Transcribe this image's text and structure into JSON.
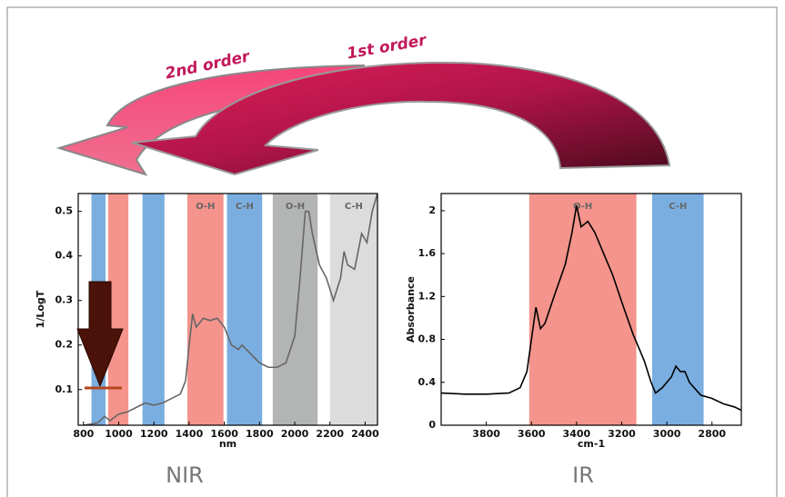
{
  "annotations": [
    "2nd order",
    "1st order"
  ],
  "chart_data": [
    {
      "type": "line",
      "title": "NIR",
      "xlabel": "nm",
      "ylabel": "1/LogT",
      "color": "#666666",
      "xlim": [
        770,
        2470
      ],
      "ylim": [
        0.02,
        0.54
      ],
      "xticks": [
        800,
        1000,
        1200,
        1400,
        1600,
        1800,
        2000,
        2200,
        2400
      ],
      "yticks": [
        0.1,
        0.2,
        0.3,
        0.4,
        0.5
      ],
      "bands": [
        {
          "from": 845,
          "to": 925,
          "color": "#7aaee0"
        },
        {
          "from": 940,
          "to": 1055,
          "color": "#f4948c"
        },
        {
          "from": 1135,
          "to": 1260,
          "color": "#7aaee0"
        },
        {
          "from": 1390,
          "to": 1595,
          "color": "#f4948c",
          "label": "O-H"
        },
        {
          "from": 1615,
          "to": 1815,
          "color": "#7aaee0",
          "label": "C-H"
        },
        {
          "from": 1875,
          "to": 2130,
          "color": "#b2b5b4",
          "label": "O-H"
        },
        {
          "from": 2200,
          "to": 2470,
          "color": "#dcdcdc",
          "label": "C-H"
        }
      ],
      "x": [
        800,
        880,
        920,
        950,
        1000,
        1050,
        1100,
        1150,
        1200,
        1250,
        1300,
        1350,
        1380,
        1400,
        1420,
        1440,
        1480,
        1520,
        1560,
        1600,
        1640,
        1680,
        1700,
        1750,
        1800,
        1850,
        1900,
        1950,
        2000,
        2030,
        2060,
        2080,
        2100,
        2140,
        2180,
        2220,
        2260,
        2280,
        2300,
        2340,
        2380,
        2410,
        2440,
        2470
      ],
      "values": [
        0.02,
        0.025,
        0.04,
        0.03,
        0.045,
        0.05,
        0.06,
        0.07,
        0.065,
        0.07,
        0.08,
        0.09,
        0.12,
        0.2,
        0.27,
        0.24,
        0.26,
        0.255,
        0.26,
        0.24,
        0.2,
        0.19,
        0.2,
        0.18,
        0.16,
        0.15,
        0.15,
        0.16,
        0.22,
        0.35,
        0.5,
        0.5,
        0.45,
        0.38,
        0.35,
        0.3,
        0.35,
        0.41,
        0.38,
        0.37,
        0.45,
        0.43,
        0.5,
        0.54
      ]
    },
    {
      "type": "line",
      "title": "IR",
      "xlabel": "cm-1",
      "ylabel": "Absorbance",
      "color": "#000000",
      "xlim": [
        4000,
        2670
      ],
      "ylim": [
        0,
        2.16
      ],
      "xticks": [
        3800,
        3600,
        3400,
        3200,
        3000,
        2800
      ],
      "yticks": [
        0,
        0.4,
        0.8,
        1.2,
        1.6,
        2
      ],
      "bands": [
        {
          "from": 3610,
          "to": 3135,
          "color": "#f4948c",
          "label": "O-H"
        },
        {
          "from": 3065,
          "to": 2837,
          "color": "#7aaee0",
          "label": "C-H"
        }
      ],
      "x": [
        4000,
        3900,
        3800,
        3700,
        3650,
        3620,
        3600,
        3580,
        3560,
        3540,
        3500,
        3450,
        3420,
        3400,
        3380,
        3350,
        3320,
        3280,
        3240,
        3200,
        3150,
        3100,
        3070,
        3050,
        3020,
        2980,
        2960,
        2940,
        2920,
        2900,
        2850,
        2800,
        2750,
        2700,
        2670
      ],
      "values": [
        0.3,
        0.29,
        0.29,
        0.3,
        0.35,
        0.5,
        0.8,
        1.1,
        0.9,
        0.95,
        1.2,
        1.5,
        1.8,
        2.05,
        1.85,
        1.9,
        1.8,
        1.6,
        1.4,
        1.15,
        0.85,
        0.6,
        0.4,
        0.3,
        0.35,
        0.45,
        0.55,
        0.5,
        0.5,
        0.4,
        0.28,
        0.25,
        0.2,
        0.17,
        0.14
      ]
    }
  ]
}
